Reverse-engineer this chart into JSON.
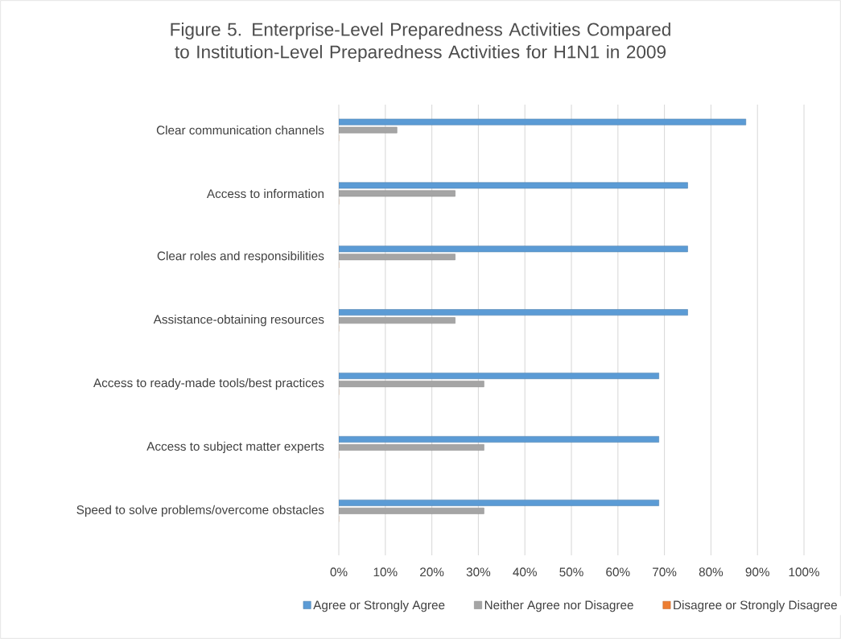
{
  "chart_data": {
    "type": "bar",
    "orientation": "horizontal",
    "title": "Figure 5. Enterprise-Level Preparedness Activities Compared to Institution-Level Preparedness Activities for H1N1 in 2009",
    "categories": [
      "Clear communication channels",
      "Access to information",
      "Clear roles and responsibilities",
      "Assistance-obtaining resources",
      "Access to ready-made tools/best practices",
      "Access to subject matter experts",
      "Speed to solve problems/overcome obstacles"
    ],
    "series": [
      {
        "name": "Agree or Strongly Agree",
        "color": "#5b9bd5",
        "values": [
          87.5,
          75,
          75,
          75,
          68.8,
          68.8,
          68.8
        ]
      },
      {
        "name": "Neither Agree nor Disagree",
        "color": "#a5a5a5",
        "values": [
          12.5,
          25,
          25,
          25,
          31.2,
          31.2,
          31.2
        ]
      },
      {
        "name": "Disagree or Strongly Disagree",
        "color": "#ed7d31",
        "values": [
          0,
          0,
          0,
          0,
          0,
          0,
          0
        ]
      }
    ],
    "xlim": [
      0,
      100
    ],
    "xticks": [
      {
        "value": 0,
        "label": "0%"
      },
      {
        "value": 10,
        "label": "10%"
      },
      {
        "value": 20,
        "label": "20%"
      },
      {
        "value": 30,
        "label": "30%"
      },
      {
        "value": 40,
        "label": "40%"
      },
      {
        "value": 50,
        "label": "50%"
      },
      {
        "value": 60,
        "label": "60%"
      },
      {
        "value": 70,
        "label": "70%"
      },
      {
        "value": 80,
        "label": "80%"
      },
      {
        "value": 90,
        "label": "90%"
      },
      {
        "value": 100,
        "label": "100%"
      }
    ],
    "grid": "x",
    "legend": "bottom"
  }
}
